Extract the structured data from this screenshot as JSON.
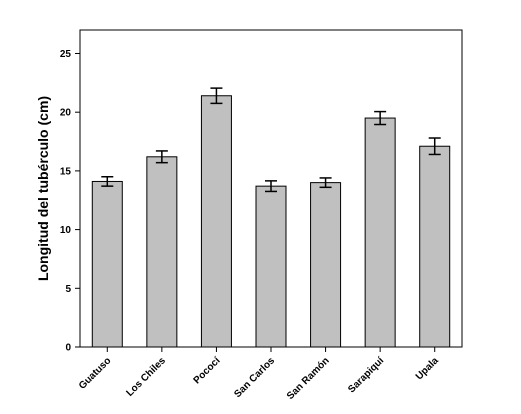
{
  "chart_data": {
    "type": "bar",
    "title": "",
    "xlabel": "",
    "ylabel": "Longitud del tubérculo (cm)",
    "ylim": [
      0,
      27
    ],
    "yticks": [
      0,
      5,
      10,
      15,
      20,
      25
    ],
    "grid": false,
    "legend": "none",
    "bar_color": "#c0c0c0",
    "categories": [
      "Guatuso",
      "Los Chiles",
      "Pococí",
      "San Carlos",
      "San Ramón",
      "Sarapiquí",
      "Upala"
    ],
    "values": [
      14.1,
      16.2,
      21.4,
      13.7,
      14.0,
      19.5,
      17.1
    ],
    "error": [
      0.4,
      0.5,
      0.65,
      0.45,
      0.4,
      0.55,
      0.7
    ]
  }
}
